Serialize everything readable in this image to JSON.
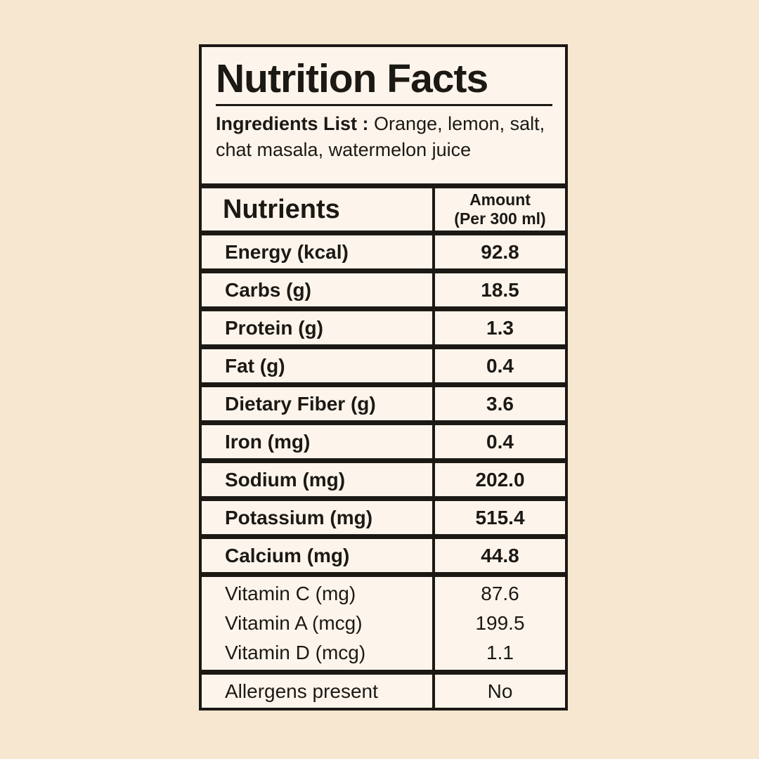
{
  "colors": {
    "page_bg": "#f8e7d0",
    "label_bg": "#fdf5ec",
    "ink": "#1c1915"
  },
  "label": {
    "title": "Nutrition Facts",
    "ingredients_label": "Ingredients List :",
    "ingredients_text": "Orange, lemon, salt, chat masala, watermelon juice"
  },
  "table": {
    "header": {
      "nutrients": "Nutrients",
      "amount_line1": "Amount",
      "amount_line2": "(Per 300 ml)"
    },
    "rows": [
      {
        "label": "Energy (kcal)",
        "value": "92.8"
      },
      {
        "label": "Carbs (g)",
        "value": "18.5"
      },
      {
        "label": "Protein (g)",
        "value": "1.3"
      },
      {
        "label": "Fat (g)",
        "value": "0.4"
      },
      {
        "label": "Dietary Fiber (g)",
        "value": "3.6"
      },
      {
        "label": "Iron (mg)",
        "value": "0.4"
      },
      {
        "label": "Sodium (mg)",
        "value": "202.0"
      },
      {
        "label": "Potassium (mg)",
        "value": "515.4"
      },
      {
        "label": "Calcium (mg)",
        "value": "44.8"
      }
    ],
    "vitamins": [
      {
        "label": "Vitamin C (mg)",
        "value": "87.6"
      },
      {
        "label": "Vitamin A (mcg)",
        "value": "199.5"
      },
      {
        "label": "Vitamin D (mcg)",
        "value": "1.1"
      }
    ],
    "allergens": {
      "label": "Allergens present",
      "value": "No"
    }
  }
}
